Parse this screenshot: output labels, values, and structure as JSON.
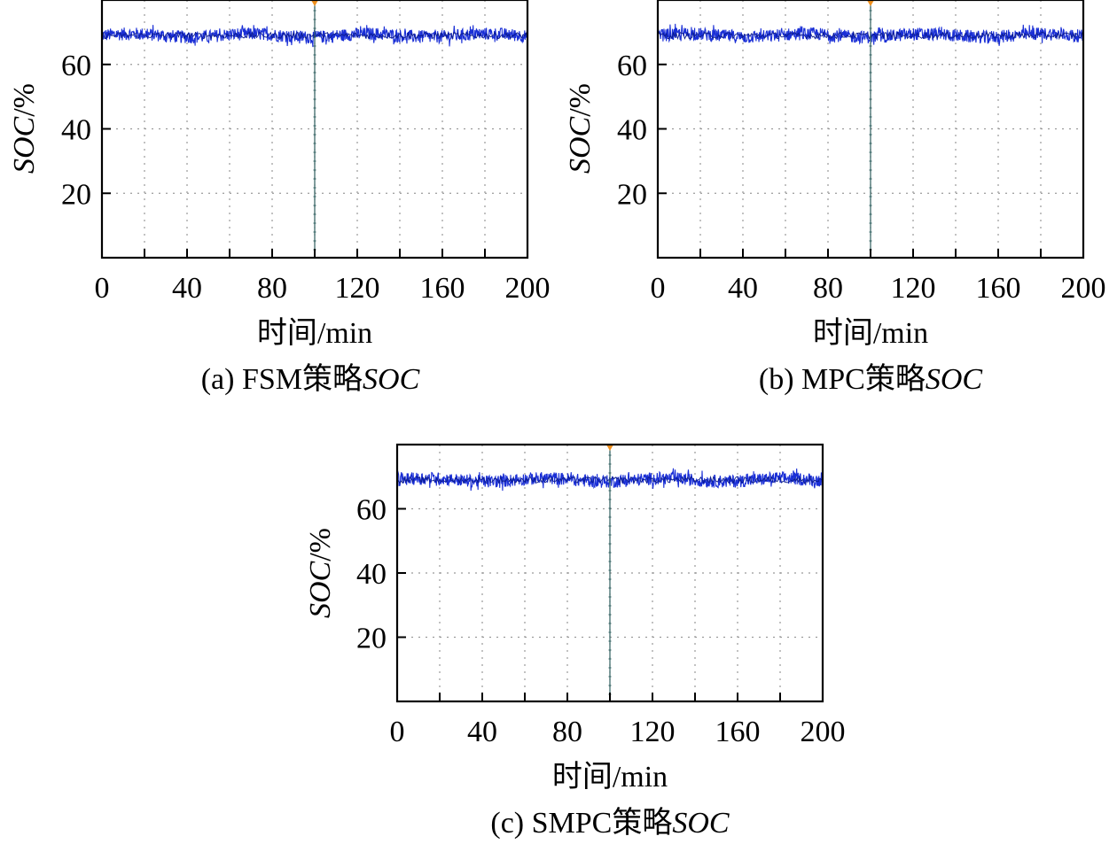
{
  "charts": [
    {
      "id": "a",
      "caption": {
        "prefix": "(a) FSM策略",
        "italic": "SOC"
      },
      "ylabel": {
        "italic": "SOC",
        "suffix": "/%"
      },
      "xlabel": "时间/min"
    },
    {
      "id": "b",
      "caption": {
        "prefix": "(b) MPC策略",
        "italic": "SOC"
      },
      "ylabel": {
        "italic": "SOC",
        "suffix": "/%"
      },
      "xlabel": "时间/min"
    },
    {
      "id": "c",
      "caption": {
        "prefix": "(c) SMPC策略",
        "italic": "SOC"
      },
      "ylabel": {
        "italic": "SOC",
        "suffix": "/%"
      },
      "xlabel": "时间/min"
    }
  ],
  "colors": {
    "series": "#1a2fd6",
    "series_dark": "#0a1a8a",
    "marker_line": "#2f5f5f",
    "marker_top": "#f0901e",
    "axes": "#000000",
    "grid": "#9a9a9a"
  },
  "chart_data": [
    {
      "type": "line",
      "x": [
        0,
        200
      ],
      "series": [
        {
          "values": [
            69,
            69
          ]
        }
      ],
      "xlim": [
        0,
        200
      ],
      "ylim": [
        0,
        80
      ],
      "xticks": [
        0,
        40,
        80,
        120,
        160,
        200
      ],
      "yticks": [
        20,
        40,
        60
      ],
      "vline_x": 100,
      "noise_amplitude": 2,
      "grid": true
    },
    {
      "type": "line",
      "x": [
        0,
        200
      ],
      "series": [
        {
          "values": [
            69,
            69
          ]
        }
      ],
      "xlim": [
        0,
        200
      ],
      "ylim": [
        0,
        80
      ],
      "xticks": [
        0,
        40,
        80,
        120,
        160,
        200
      ],
      "yticks": [
        20,
        40,
        60
      ],
      "vline_x": 100,
      "noise_amplitude": 2,
      "grid": true
    },
    {
      "type": "line",
      "x": [
        0,
        200
      ],
      "series": [
        {
          "values": [
            69,
            69
          ]
        }
      ],
      "xlim": [
        0,
        200
      ],
      "ylim": [
        0,
        80
      ],
      "xticks": [
        0,
        40,
        80,
        120,
        160,
        200
      ],
      "yticks": [
        20,
        40,
        60
      ],
      "vline_x": 100,
      "noise_amplitude": 2,
      "grid": true
    }
  ]
}
